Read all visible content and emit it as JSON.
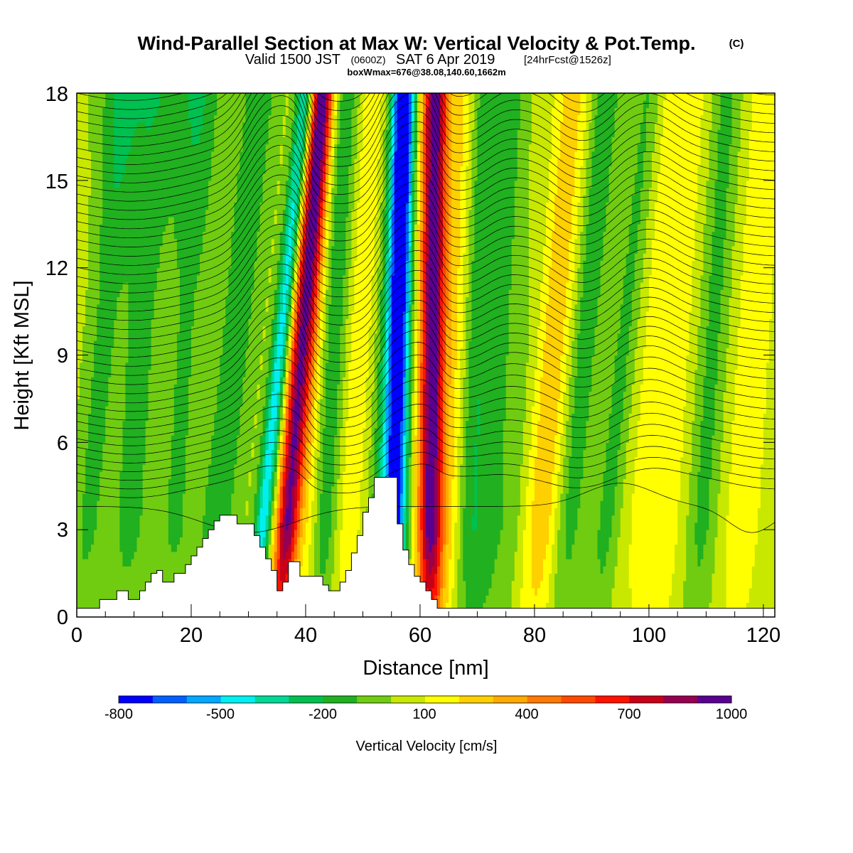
{
  "title": {
    "main": "Wind-Parallel Section at Max W: Vertical Velocity & Pot.Temp.",
    "copyright": "(C)",
    "valid_prefix": "Valid 1500 JST",
    "valid_zulu": "(0600Z)",
    "valid_date": "SAT 6 Apr 2019",
    "forecast": "[24hrFcst@1526z]",
    "box_info": "boxWmax=676@38.08,140.60,1662m"
  },
  "chart_data": {
    "type": "heatmap",
    "xlabel": "Distance [nm]",
    "ylabel": "Height [Kft MSL]",
    "xlim": [
      0,
      122
    ],
    "ylim": [
      0,
      18
    ],
    "x_ticks": [
      "0",
      "20",
      "40",
      "60",
      "80",
      "100",
      "120"
    ],
    "y_ticks": [
      "0",
      "3",
      "6",
      "9",
      "12",
      "15",
      "18"
    ],
    "colorbar": {
      "label": "Vertical Velocity [cm/s]",
      "tick_labels": [
        "-800",
        "-500",
        "-200",
        "100",
        "400",
        "700",
        "1000"
      ],
      "levels": [
        -800,
        -700,
        -600,
        -500,
        -400,
        -300,
        -200,
        -100,
        0,
        100,
        200,
        300,
        400,
        500,
        600,
        700,
        800,
        900,
        1000
      ],
      "colors": [
        "#0000ff",
        "#0060ff",
        "#00a8ff",
        "#00f0f0",
        "#00d898",
        "#00c050",
        "#20b020",
        "#70cc10",
        "#c8e800",
        "#ffff00",
        "#ffd000",
        "#ffaa00",
        "#ff7a00",
        "#ff4a00",
        "#ff1200",
        "#c80018",
        "#960050",
        "#5a0090"
      ]
    },
    "terrain_profile": {
      "x": [
        0,
        4,
        4,
        7,
        7,
        9,
        9,
        11,
        11,
        12,
        12,
        13,
        13,
        14,
        14,
        15,
        15,
        17,
        17,
        19,
        19,
        20,
        20,
        21,
        21,
        22,
        22,
        23,
        23,
        24,
        24,
        25,
        25,
        26,
        26,
        28,
        28,
        31,
        31,
        32,
        32,
        33,
        33,
        34,
        34,
        35,
        35,
        36,
        36,
        37,
        37,
        38,
        38,
        39,
        39,
        43,
        43,
        44,
        44,
        46,
        46,
        47,
        47,
        48,
        48,
        49,
        49,
        50,
        50,
        51,
        51,
        52,
        52,
        53,
        53,
        56,
        56,
        57,
        57,
        58,
        58,
        59,
        59,
        60,
        60,
        61,
        61,
        62,
        62,
        63,
        63,
        65,
        65,
        122
      ],
      "y": [
        0.3,
        0.3,
        0.6,
        0.6,
        0.9,
        0.9,
        0.6,
        0.6,
        0.9,
        0.9,
        1.2,
        1.2,
        1.5,
        1.5,
        1.6,
        1.6,
        1.2,
        1.2,
        1.5,
        1.5,
        1.8,
        1.8,
        2.1,
        2.1,
        2.4,
        2.4,
        2.7,
        2.7,
        3.0,
        3.0,
        3.3,
        3.3,
        3.5,
        3.5,
        3.5,
        3.5,
        3.2,
        3.2,
        2.8,
        2.8,
        2.4,
        2.4,
        2.0,
        2.0,
        1.6,
        1.6,
        0.9,
        0.9,
        1.2,
        1.2,
        1.9,
        1.9,
        1.9,
        1.9,
        1.4,
        1.4,
        1.1,
        1.1,
        0.9,
        0.9,
        1.2,
        1.2,
        1.6,
        1.6,
        2.2,
        2.2,
        2.8,
        2.8,
        3.6,
        3.6,
        4.1,
        4.1,
        4.8,
        4.8,
        4.8,
        4.8,
        3.2,
        3.2,
        2.3,
        2.3,
        1.8,
        1.8,
        1.4,
        1.4,
        1.2,
        1.2,
        0.9,
        0.9,
        0.6,
        0.6,
        0.3,
        0.3,
        0.3,
        0.3
      ]
    }
  }
}
